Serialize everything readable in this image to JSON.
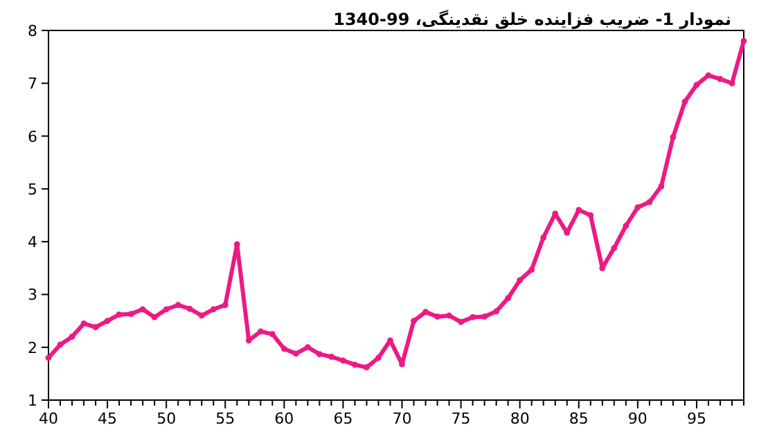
{
  "chart_data": {
    "type": "line",
    "title": "نمودار 1- ضریب فزاینده خلق نقدینگی، 99-1340",
    "x": [
      40,
      41,
      42,
      43,
      44,
      45,
      46,
      47,
      48,
      49,
      50,
      51,
      52,
      53,
      54,
      55,
      56,
      57,
      58,
      59,
      60,
      61,
      62,
      63,
      64,
      65,
      66,
      67,
      68,
      69,
      70,
      71,
      72,
      73,
      74,
      75,
      76,
      77,
      78,
      79,
      80,
      81,
      82,
      83,
      84,
      85,
      86,
      87,
      88,
      89,
      90,
      91,
      92,
      93,
      94,
      95,
      96,
      97,
      98,
      99
    ],
    "series": [
      {
        "color": "#ec1a84",
        "values": [
          1.8,
          2.05,
          2.2,
          2.45,
          2.38,
          2.5,
          2.62,
          2.63,
          2.72,
          2.57,
          2.72,
          2.8,
          2.73,
          2.6,
          2.72,
          2.8,
          3.95,
          2.13,
          2.3,
          2.25,
          1.97,
          1.88,
          2.0,
          1.87,
          1.82,
          1.75,
          1.67,
          1.62,
          1.8,
          2.13,
          1.68,
          2.5,
          2.67,
          2.58,
          2.6,
          2.48,
          2.57,
          2.58,
          2.68,
          2.93,
          3.27,
          3.47,
          4.08,
          4.53,
          4.17,
          4.6,
          4.5,
          3.5,
          3.88,
          4.3,
          4.65,
          4.75,
          5.05,
          5.98,
          6.65,
          6.97,
          7.15,
          7.08,
          7.0,
          7.8
        ]
      }
    ],
    "xlim": [
      40,
      99
    ],
    "xticks": [
      40,
      {
        "value": 41,
        "label": null
      },
      {
        "value": 42,
        "label": null
      },
      {
        "value": 43,
        "label": null
      },
      {
        "value": 44,
        "label": null
      },
      45,
      {
        "value": 46,
        "label": null
      },
      {
        "value": 47,
        "label": null
      },
      {
        "value": 48,
        "label": null
      },
      {
        "value": 49,
        "label": null
      },
      50,
      {
        "value": 51,
        "label": null
      },
      {
        "value": 52,
        "label": null
      },
      {
        "value": 53,
        "label": null
      },
      {
        "value": 54,
        "label": null
      },
      55,
      {
        "value": 56,
        "label": null
      },
      {
        "value": 57,
        "label": null
      },
      {
        "value": 58,
        "label": null
      },
      {
        "value": 59,
        "label": null
      },
      60,
      {
        "value": 61,
        "label": null
      },
      {
        "value": 62,
        "label": null
      },
      {
        "value": 63,
        "label": null
      },
      {
        "value": 64,
        "label": null
      },
      65,
      {
        "value": 66,
        "label": null
      },
      {
        "value": 67,
        "label": null
      },
      {
        "value": 68,
        "label": null
      },
      {
        "value": 69,
        "label": null
      },
      70,
      {
        "value": 71,
        "label": null
      },
      {
        "value": 72,
        "label": null
      },
      {
        "value": 73,
        "label": null
      },
      {
        "value": 74,
        "label": null
      },
      75,
      {
        "value": 76,
        "label": null
      },
      {
        "value": 77,
        "label": null
      },
      {
        "value": 78,
        "label": null
      },
      {
        "value": 79,
        "label": null
      },
      80,
      {
        "value": 81,
        "label": null
      },
      {
        "value": 82,
        "label": null
      },
      {
        "value": 83,
        "label": null
      },
      {
        "value": 84,
        "label": null
      },
      85,
      {
        "value": 86,
        "label": null
      },
      {
        "value": 87,
        "label": null
      },
      {
        "value": 88,
        "label": null
      },
      {
        "value": 89,
        "label": null
      },
      90,
      {
        "value": 91,
        "label": null
      },
      {
        "value": 92,
        "label": null
      },
      {
        "value": 93,
        "label": null
      },
      {
        "value": 94,
        "label": null
      },
      95,
      {
        "value": 96,
        "label": null
      },
      {
        "value": 97,
        "label": null
      },
      {
        "value": 98,
        "label": null
      },
      {
        "value": 99,
        "label": null
      }
    ],
    "ylim": [
      1,
      8
    ],
    "yticks": [
      1,
      2,
      3,
      4,
      5,
      6,
      7,
      8
    ],
    "grid": false,
    "marker": "circle",
    "line_style": "solid"
  }
}
